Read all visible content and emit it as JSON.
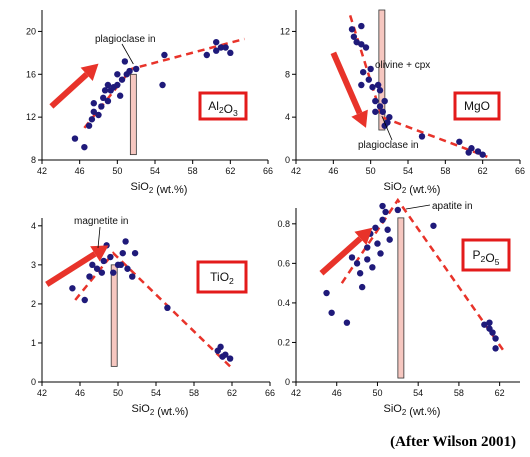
{
  "credit": "(After Wilson 2001)",
  "chart_data": [
    {
      "type": "scatter",
      "xlabel": "SiO2 (wt.%)",
      "xlim": [
        42,
        66
      ],
      "ylim": [
        8,
        22
      ],
      "xticks": [
        42,
        46,
        50,
        54,
        58,
        62,
        66
      ],
      "yticks": [
        8,
        12,
        16,
        20
      ],
      "box_label": "Al2O3",
      "annotation": "plagioclase in",
      "marker_x": 51.7,
      "marker_y_range": [
        8.5,
        16
      ],
      "trend": [
        [
          46.5,
          11.0
        ],
        [
          51.5,
          16.5
        ],
        [
          63.5,
          19.3
        ]
      ],
      "arrow": [
        [
          43,
          13
        ],
        [
          48,
          17
        ]
      ],
      "points": [
        [
          45.5,
          10.0
        ],
        [
          46.5,
          9.2
        ],
        [
          47,
          11.2
        ],
        [
          47.3,
          11.8
        ],
        [
          47.5,
          12.5
        ],
        [
          48,
          12.2
        ],
        [
          48.3,
          13.0
        ],
        [
          48.5,
          13.8
        ],
        [
          48.7,
          14.5
        ],
        [
          49,
          13.5
        ],
        [
          49,
          15.0
        ],
        [
          49.3,
          14.5
        ],
        [
          49.6,
          14.8
        ],
        [
          50,
          15.0
        ],
        [
          50,
          16.0
        ],
        [
          50.3,
          14.0
        ],
        [
          50.5,
          15.5
        ],
        [
          50.8,
          17.2
        ],
        [
          51,
          16.0
        ],
        [
          51.3,
          16.3
        ],
        [
          52,
          16.5
        ],
        [
          54.8,
          15.0
        ],
        [
          55,
          17.8
        ],
        [
          59.5,
          17.8
        ],
        [
          60.5,
          18.2
        ],
        [
          61,
          18.5
        ],
        [
          60.5,
          19.0
        ],
        [
          61.5,
          18.5
        ],
        [
          62,
          18.0
        ],
        [
          47.5,
          13.3
        ]
      ]
    },
    {
      "type": "scatter",
      "xlabel": "SiO2 (wt.%)",
      "xlim": [
        42,
        66
      ],
      "ylim": [
        0,
        14
      ],
      "xticks": [
        42,
        46,
        50,
        54,
        58,
        62,
        66
      ],
      "yticks": [
        0,
        4,
        8,
        12
      ],
      "box_label": "MgO",
      "annotation": "plagioclase in",
      "annotation2": "olivine + cpx",
      "marker_x": 51.2,
      "marker_y_range": [
        2.8,
        14
      ],
      "trend": [
        [
          47.8,
          13.5
        ],
        [
          51.2,
          4.0
        ],
        [
          62.5,
          0.3
        ]
      ],
      "arrow": [
        [
          46,
          10
        ],
        [
          49.5,
          3.0
        ]
      ],
      "points": [
        [
          48,
          12.2
        ],
        [
          48.2,
          11.5
        ],
        [
          48.5,
          11.0
        ],
        [
          49,
          12.5
        ],
        [
          49,
          10.8
        ],
        [
          49.2,
          8.2
        ],
        [
          49,
          7.0
        ],
        [
          49.5,
          10.5
        ],
        [
          50,
          8.5
        ],
        [
          49.8,
          7.5
        ],
        [
          50.2,
          6.8
        ],
        [
          50.5,
          5.5
        ],
        [
          50.5,
          4.5
        ],
        [
          50.8,
          7.0
        ],
        [
          51,
          6.5
        ],
        [
          51,
          5.0
        ],
        [
          51.3,
          4.5
        ],
        [
          51.5,
          3.2
        ],
        [
          51.5,
          5.5
        ],
        [
          52,
          4.0
        ],
        [
          51.8,
          3.5
        ],
        [
          55.5,
          2.2
        ],
        [
          59.5,
          1.7
        ],
        [
          60.5,
          0.7
        ],
        [
          61.5,
          0.8
        ],
        [
          62,
          0.5
        ],
        [
          60.8,
          1.1
        ]
      ]
    },
    {
      "type": "scatter",
      "xlabel": "SiO2 (wt.%)",
      "xlim": [
        42,
        66
      ],
      "ylim": [
        0,
        4.2
      ],
      "xticks": [
        42,
        46,
        50,
        54,
        58,
        62,
        66
      ],
      "yticks": [
        0,
        1,
        2,
        3,
        4
      ],
      "box_label": "TiO2",
      "annotation": "magnetite in",
      "marker_x": 49.6,
      "marker_y_range": [
        0.4,
        3.0
      ],
      "trend": [
        [
          45.5,
          2.1
        ],
        [
          49.5,
          3.3
        ],
        [
          61.8,
          0.4
        ]
      ],
      "arrow": [
        [
          42.5,
          2.5
        ],
        [
          49,
          3.5
        ]
      ],
      "points": [
        [
          45.2,
          2.4
        ],
        [
          46.5,
          2.1
        ],
        [
          47,
          2.7
        ],
        [
          47.3,
          3.0
        ],
        [
          47.8,
          2.9
        ],
        [
          48,
          3.3
        ],
        [
          48.3,
          2.8
        ],
        [
          48.5,
          3.1
        ],
        [
          48.8,
          3.5
        ],
        [
          49.2,
          3.2
        ],
        [
          49.5,
          2.8
        ],
        [
          50,
          3.0
        ],
        [
          50.3,
          3.0
        ],
        [
          50.5,
          3.3
        ],
        [
          50.8,
          3.6
        ],
        [
          51,
          2.9
        ],
        [
          51.5,
          2.7
        ],
        [
          51.8,
          3.3
        ],
        [
          55.2,
          1.9
        ],
        [
          60.5,
          0.8
        ],
        [
          60.8,
          0.9
        ],
        [
          61.3,
          0.7
        ],
        [
          61.8,
          0.6
        ],
        [
          61,
          0.65
        ]
      ]
    },
    {
      "type": "scatter",
      "xlabel": "SiO2 (wt.%)",
      "xlim": [
        42,
        64
      ],
      "ylim": [
        0,
        0.88
      ],
      "xticks": [
        42,
        46,
        50,
        54,
        58,
        62
      ],
      "yticks": [
        0,
        0.2,
        0.4,
        0.6,
        0.8
      ],
      "box_label": "P2O5",
      "annotation": "apatite in",
      "marker_x": 52.3,
      "marker_y_range": [
        0.02,
        0.83
      ],
      "trend": [
        [
          46.5,
          0.5
        ],
        [
          52,
          0.92
        ],
        [
          62.5,
          0.15
        ]
      ],
      "arrow": [
        [
          44.5,
          0.55
        ],
        [
          49.5,
          0.78
        ]
      ],
      "points": [
        [
          45.5,
          0.35
        ],
        [
          47,
          0.3
        ],
        [
          47.5,
          0.63
        ],
        [
          48,
          0.6
        ],
        [
          48.3,
          0.55
        ],
        [
          48.5,
          0.48
        ],
        [
          49,
          0.62
        ],
        [
          49,
          0.68
        ],
        [
          49.3,
          0.75
        ],
        [
          49.5,
          0.58
        ],
        [
          49.8,
          0.78
        ],
        [
          50,
          0.7
        ],
        [
          50.3,
          0.65
        ],
        [
          50.5,
          0.82
        ],
        [
          50.5,
          0.89
        ],
        [
          50.8,
          0.86
        ],
        [
          51,
          0.77
        ],
        [
          51.2,
          0.72
        ],
        [
          52,
          0.87
        ],
        [
          55.5,
          0.79
        ],
        [
          60.5,
          0.29
        ],
        [
          61,
          0.27
        ],
        [
          61.3,
          0.25
        ],
        [
          61.6,
          0.22
        ],
        [
          61.6,
          0.17
        ],
        [
          61,
          0.3
        ],
        [
          45,
          0.45
        ]
      ]
    }
  ]
}
